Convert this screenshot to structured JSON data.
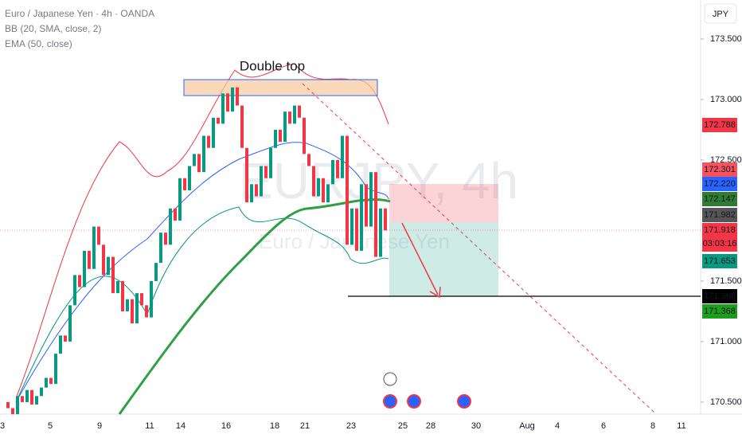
{
  "header": {
    "symbol": "Euro / Japanese Yen · 4h · OANDA",
    "indicator_1": "BB (20, SMA, close, 2)",
    "indicator_2": "EMA (50, close)",
    "currency": "JPY"
  },
  "watermark": {
    "ticker": "EURJPY, 4h",
    "name": "Euro / Japanese Yen"
  },
  "annotation": "Double top",
  "chart_data": {
    "type": "candlestick",
    "ylim": [
      170.414,
      173.822
    ],
    "yticks": [
      {
        "value": 173.5,
        "label": "173.500"
      },
      {
        "value": 173,
        "label": "173.000"
      },
      {
        "value": 172.5,
        "label": "172.500"
      },
      {
        "value": 171.5,
        "label": "171.500"
      },
      {
        "value": 171,
        "label": "171.000"
      },
      {
        "value": 170.5,
        "label": "170.500"
      }
    ],
    "xlabels": [
      "3",
      "5",
      "9",
      "11",
      "14",
      "16",
      "18",
      "21",
      "23",
      "25",
      "28",
      "30",
      "Aug",
      "4",
      "6",
      "8",
      "11"
    ],
    "first_open": 170.5,
    "close": [
      170.45,
      170.4,
      170.55,
      170.5,
      170.6,
      170.48,
      170.55,
      170.62,
      170.7,
      170.65,
      170.9,
      171.05,
      171.0,
      171.3,
      171.55,
      171.45,
      171.75,
      171.6,
      171.95,
      171.8,
      171.55,
      171.7,
      171.4,
      171.5,
      171.25,
      171.35,
      171.15,
      171.4,
      171.3,
      171.2,
      171.5,
      171.65,
      171.9,
      171.8,
      172.1,
      172.0,
      172.35,
      172.25,
      172.45,
      172.55,
      172.4,
      172.7,
      172.6,
      172.85,
      172.8,
      173.05,
      172.9,
      173.1,
      172.95,
      172.6,
      172.15,
      172.3,
      172.2,
      172.45,
      172.35,
      172.6,
      172.75,
      172.65,
      172.9,
      172.8,
      172.95,
      172.85,
      172.55,
      172.45,
      172.2,
      172.35,
      172.15,
      172.3,
      172.5,
      172.35,
      172.7,
      171.8,
      172.1,
      171.75,
      172.3,
      171.95,
      172.4,
      171.7,
      172.1,
      171.918
    ],
    "up_color": "#089981",
    "down_color": "#f23645",
    "price_tags": [
      {
        "label": "172.788",
        "color": "#f23645"
      },
      {
        "label": "172.301",
        "color": "#f7525f"
      },
      {
        "label": "172.220",
        "color": "#2962ff"
      },
      {
        "label": "172.147",
        "color": "#2e7d32"
      },
      {
        "label": "171.982",
        "color": "#555555"
      },
      {
        "label": "171.918",
        "color": "#f23645",
        "timer": "03:03:16"
      },
      {
        "label": "171.653",
        "color": "#089981"
      },
      {
        "label": "171.368",
        "color": "#000000"
      },
      {
        "label": "171.368",
        "color": "#1b9e1b"
      }
    ]
  }
}
